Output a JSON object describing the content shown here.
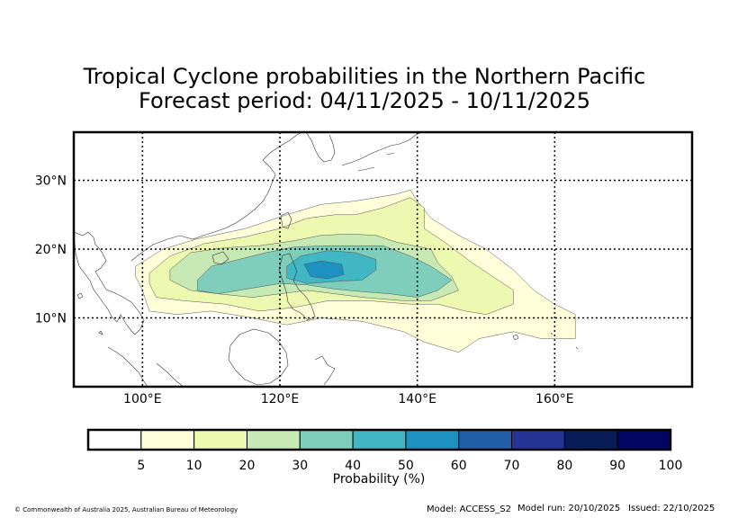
{
  "header": {
    "title_line1": "Tropical Cyclone probabilities in the Northern Pacific",
    "title_line2": "Forecast period: 04/11/2025 - 10/11/2025"
  },
  "map": {
    "lon_range": [
      90,
      180
    ],
    "lat_range": [
      0,
      37
    ],
    "lon_ticks": [
      {
        "value": 100,
        "label": "100°E"
      },
      {
        "value": 120,
        "label": "120°E"
      },
      {
        "value": 140,
        "label": "140°E"
      },
      {
        "value": 160,
        "label": "160°E"
      }
    ],
    "lat_ticks": [
      {
        "value": 10,
        "label": "10°N"
      },
      {
        "value": 20,
        "label": "20°N"
      },
      {
        "value": 30,
        "label": "30°N"
      }
    ],
    "gridlines": true,
    "contours": [
      {
        "level": 5,
        "color": "#ffffd9",
        "points": [
          [
            99,
            17.5
          ],
          [
            103,
            20
          ],
          [
            108,
            21.5
          ],
          [
            115,
            23
          ],
          [
            121,
            25
          ],
          [
            126,
            26.5
          ],
          [
            131,
            27
          ],
          [
            137,
            28
          ],
          [
            139,
            28.6
          ],
          [
            140,
            27
          ],
          [
            142,
            24.5
          ],
          [
            146,
            22
          ],
          [
            150,
            20
          ],
          [
            154,
            17
          ],
          [
            157,
            14
          ],
          [
            160,
            12
          ],
          [
            163,
            10.5
          ],
          [
            163,
            7
          ],
          [
            158,
            7
          ],
          [
            154,
            8
          ],
          [
            149,
            7
          ],
          [
            146,
            5
          ],
          [
            141,
            6.5
          ],
          [
            138,
            8
          ],
          [
            132,
            9.5
          ],
          [
            126,
            10
          ],
          [
            121,
            9
          ],
          [
            116,
            10
          ],
          [
            110,
            11
          ],
          [
            105,
            10.5
          ],
          [
            101,
            11
          ],
          [
            100,
            14
          ],
          [
            99,
            16
          ]
        ]
      },
      {
        "level": 10,
        "color": "#edf8b1",
        "points": [
          [
            101,
            16.5
          ],
          [
            104,
            19
          ],
          [
            109,
            20.8
          ],
          [
            115,
            21.8
          ],
          [
            120,
            23
          ],
          [
            124,
            24.5
          ],
          [
            128,
            25
          ],
          [
            131,
            25
          ],
          [
            135,
            26
          ],
          [
            139,
            27.5
          ],
          [
            141,
            26
          ],
          [
            141,
            23
          ],
          [
            144,
            21
          ],
          [
            148,
            18
          ],
          [
            151,
            16
          ],
          [
            154,
            14
          ],
          [
            154,
            12
          ],
          [
            150,
            10.5
          ],
          [
            147,
            11
          ],
          [
            143,
            12
          ],
          [
            139,
            12
          ],
          [
            133,
            12.5
          ],
          [
            127,
            12.5
          ],
          [
            122,
            11.5
          ],
          [
            117,
            11
          ],
          [
            112,
            12
          ],
          [
            106,
            12.5
          ],
          [
            102,
            13
          ],
          [
            101,
            15
          ]
        ]
      },
      {
        "level": 20,
        "color": "#c7e9b4",
        "points": [
          [
            104,
            17
          ],
          [
            107,
            19.5
          ],
          [
            112,
            20.2
          ],
          [
            117,
            20.5
          ],
          [
            122,
            21.2
          ],
          [
            126,
            22
          ],
          [
            130,
            22.2
          ],
          [
            134,
            22
          ],
          [
            137,
            21
          ],
          [
            142,
            20
          ],
          [
            143,
            18
          ],
          [
            145,
            16
          ],
          [
            146,
            14
          ],
          [
            142,
            12.5
          ],
          [
            138,
            12.5
          ],
          [
            132,
            13
          ],
          [
            128,
            13.5
          ],
          [
            124,
            14
          ],
          [
            120,
            13.5
          ],
          [
            116,
            13
          ],
          [
            111,
            13.5
          ],
          [
            107,
            14
          ],
          [
            104,
            15.5
          ]
        ]
      },
      {
        "level": 30,
        "color": "#7fcdbb",
        "points": [
          [
            108,
            15.5
          ],
          [
            110,
            17.5
          ],
          [
            114,
            18.5
          ],
          [
            118,
            19.5
          ],
          [
            122,
            20.3
          ],
          [
            127,
            20.5
          ],
          [
            131,
            20.5
          ],
          [
            135,
            20.5
          ],
          [
            139,
            19
          ],
          [
            142,
            17.5
          ],
          [
            145,
            15.5
          ],
          [
            143,
            14
          ],
          [
            140,
            13
          ],
          [
            136,
            13.5
          ],
          [
            132,
            13.8
          ],
          [
            128,
            14.2
          ],
          [
            124,
            14.8
          ],
          [
            120,
            15
          ],
          [
            117,
            14.5
          ],
          [
            114,
            14
          ],
          [
            111,
            13.5
          ],
          [
            108,
            14
          ]
        ]
      },
      {
        "level": 40,
        "color": "#41b6c4",
        "points": [
          [
            121,
            17.5
          ],
          [
            123,
            19
          ],
          [
            127,
            19.8
          ],
          [
            131,
            19.5
          ],
          [
            134,
            18.5
          ],
          [
            134,
            17
          ],
          [
            132,
            15.5
          ],
          [
            128,
            15.3
          ],
          [
            124,
            15
          ],
          [
            121,
            15.8
          ]
        ]
      },
      {
        "level": 50,
        "color": "#1d91c0",
        "points": [
          [
            123.5,
            17.8
          ],
          [
            126,
            18.3
          ],
          [
            129,
            17.8
          ],
          [
            129.3,
            16.3
          ],
          [
            127,
            15.7
          ],
          [
            124.5,
            16
          ]
        ]
      }
    ]
  },
  "colorbar": {
    "label": "Probability (%)",
    "colors": [
      "#ffffff",
      "#ffffd9",
      "#edf8b1",
      "#c7e9b4",
      "#7fcdbb",
      "#41b6c4",
      "#1d91c0",
      "#225ea8",
      "#253494",
      "#081d58",
      "#030763"
    ],
    "ticks": [
      "5",
      "10",
      "20",
      "30",
      "40",
      "50",
      "60",
      "70",
      "80",
      "90",
      "100"
    ]
  },
  "footer": {
    "copyright": "© Commonwealth of Australia 2025, Australian Bureau of Meteorology",
    "model": "Model: ACCESS_S2",
    "model_run": "Model run: 20/10/2025",
    "issued": "Issued: 22/10/2025"
  }
}
